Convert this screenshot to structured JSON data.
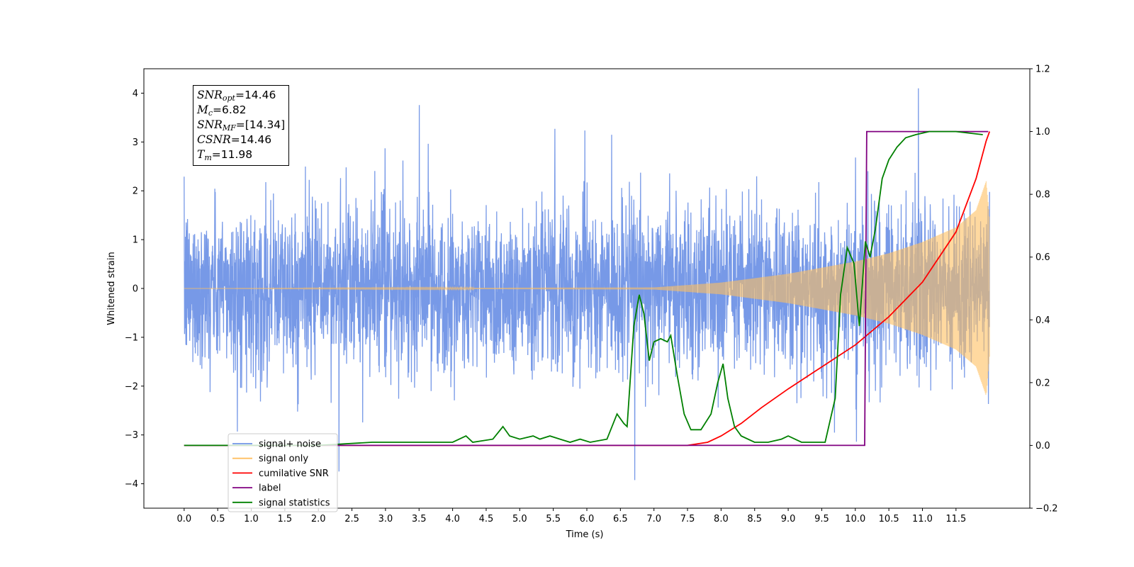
{
  "chart_data": {
    "type": "line",
    "xlabel": "Time (s)",
    "ylabel": "Whitened strain",
    "xlim": [
      -0.6,
      12.6
    ],
    "ylim": [
      -4.5,
      4.5
    ],
    "y2lim": [
      -0.2,
      1.2
    ],
    "xticks": [
      "0.0",
      "0.5",
      "1.0",
      "1.5",
      "2.0",
      "2.5",
      "3.0",
      "3.5",
      "4.0",
      "4.5",
      "5.0",
      "5.5",
      "6.0",
      "6.5",
      "7.0",
      "7.5",
      "8.0",
      "8.5",
      "9.0",
      "9.5",
      "10.0",
      "10.5",
      "11.0",
      "11.5"
    ],
    "yticks": [
      "4",
      "3",
      "2",
      "1",
      "0",
      "−1",
      "−2",
      "−3",
      "−4"
    ],
    "y2ticks": [
      "1.2",
      "1.0",
      "0.8",
      "0.6",
      "0.4",
      "0.2",
      "0.0",
      "−0.2"
    ],
    "legend_placement": "lower-left",
    "annotation": {
      "snr_opt": "=14.46",
      "mc": "=6.82",
      "snr_mf": "=[14.34]",
      "csnr": "=14.46",
      "tm": "=11.98"
    },
    "series": [
      {
        "name": "signal+ noise",
        "color": "#7094e6",
        "axis": "left",
        "description_values": {
          "noise_std": 0.75,
          "range": [
            -4.1,
            4.1
          ],
          "t_start": 0.0,
          "t_end": 12.0
        }
      },
      {
        "name": "signal only",
        "color": "#ffbf60",
        "axis": "left",
        "envelope": {
          "t": [
            0.0,
            7.0,
            8.0,
            9.0,
            10.0,
            10.5,
            11.0,
            11.5,
            11.8,
            11.95,
            12.0
          ],
          "amp": [
            0.0,
            0.02,
            0.12,
            0.3,
            0.55,
            0.72,
            0.95,
            1.25,
            1.6,
            2.2,
            1.4
          ]
        }
      },
      {
        "name": "cumilative SNR",
        "color": "#ff0000",
        "axis": "right",
        "x": [
          0.0,
          7.5,
          7.8,
          8.0,
          8.3,
          8.6,
          9.0,
          9.5,
          10.0,
          10.5,
          11.0,
          11.5,
          11.8,
          11.95,
          12.0
        ],
        "y": [
          0.0,
          0.0,
          0.01,
          0.03,
          0.07,
          0.12,
          0.18,
          0.25,
          0.32,
          0.41,
          0.52,
          0.68,
          0.85,
          0.97,
          1.0
        ]
      },
      {
        "name": "label",
        "color": "#800080",
        "axis": "right",
        "x": [
          0.0,
          10.14,
          10.17,
          11.98
        ],
        "y": [
          0.0,
          0.0,
          1.0,
          1.0
        ]
      },
      {
        "name": "signal statistics",
        "color": "#008000",
        "axis": "right",
        "x": [
          0.0,
          2.0,
          2.8,
          3.2,
          3.6,
          4.0,
          4.2,
          4.3,
          4.6,
          4.75,
          4.85,
          5.0,
          5.2,
          5.3,
          5.45,
          5.6,
          5.75,
          5.9,
          6.05,
          6.3,
          6.45,
          6.55,
          6.6,
          6.7,
          6.78,
          6.85,
          6.93,
          7.0,
          7.1,
          7.2,
          7.25,
          7.35,
          7.45,
          7.55,
          7.7,
          7.85,
          7.95,
          8.03,
          8.1,
          8.2,
          8.3,
          8.5,
          8.7,
          8.9,
          9.0,
          9.2,
          9.4,
          9.55,
          9.7,
          9.78,
          9.88,
          9.98,
          10.06,
          10.15,
          10.22,
          10.3,
          10.4,
          10.5,
          10.62,
          10.75,
          10.9,
          11.1,
          11.5,
          11.9
        ],
        "y": [
          0.0,
          0.0,
          0.01,
          0.01,
          0.01,
          0.01,
          0.03,
          0.01,
          0.02,
          0.06,
          0.03,
          0.02,
          0.03,
          0.02,
          0.03,
          0.02,
          0.01,
          0.02,
          0.01,
          0.02,
          0.1,
          0.07,
          0.06,
          0.38,
          0.48,
          0.42,
          0.27,
          0.33,
          0.34,
          0.33,
          0.35,
          0.22,
          0.1,
          0.05,
          0.05,
          0.1,
          0.2,
          0.26,
          0.15,
          0.06,
          0.03,
          0.01,
          0.01,
          0.02,
          0.03,
          0.01,
          0.01,
          0.01,
          0.15,
          0.48,
          0.63,
          0.58,
          0.38,
          0.65,
          0.6,
          0.69,
          0.85,
          0.91,
          0.95,
          0.98,
          0.99,
          1.0,
          1.0,
          0.99
        ]
      }
    ]
  }
}
